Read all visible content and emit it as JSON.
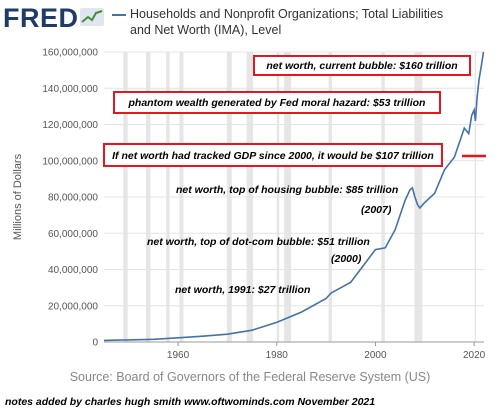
{
  "header": {
    "logo_text": "FRED",
    "logo_icon": "fred-trend-line-icon",
    "series_title": "Households and Nonprofit Organizations; Total Liabilities and Net Worth (IMA), Level"
  },
  "colors": {
    "line": "#4572a7",
    "recession_band": "#e6e6e6",
    "annotation_border": "#e8141e",
    "logo": "#1f3b66"
  },
  "chart_data": {
    "type": "line",
    "ylabel": "Millions of Dollars",
    "xlim": [
      1945,
      2022
    ],
    "ylim": [
      0,
      160000000
    ],
    "x_ticks": [
      1960,
      1980,
      2000,
      2020
    ],
    "y_ticks": [
      {
        "value": 0,
        "label": "0"
      },
      {
        "value": 20000000,
        "label": "20,000,000"
      },
      {
        "value": 40000000,
        "label": "40,000,000"
      },
      {
        "value": 60000000,
        "label": "60,000,000"
      },
      {
        "value": 80000000,
        "label": "80,000,000"
      },
      {
        "value": 100000000,
        "label": "100,000,000"
      },
      {
        "value": 120000000,
        "label": "120,000,000"
      },
      {
        "value": 140000000,
        "label": "140,000,000"
      },
      {
        "value": 160000000,
        "label": "160,000,000"
      }
    ],
    "grid": true,
    "recessions": [
      [
        1948.9,
        1949.8
      ],
      [
        1953.5,
        1954.4
      ],
      [
        1957.6,
        1958.3
      ],
      [
        1960.3,
        1961.1
      ],
      [
        1969.9,
        1970.9
      ],
      [
        1973.9,
        1975.2
      ],
      [
        1980.0,
        1980.5
      ],
      [
        1981.5,
        1982.9
      ],
      [
        1990.5,
        1991.2
      ],
      [
        2001.2,
        2001.9
      ],
      [
        2007.9,
        2009.5
      ],
      [
        2020.1,
        2020.4
      ]
    ],
    "series": [
      {
        "x": [
          1945.0,
          1946.0,
          1947.0,
          1948.0,
          1949.0,
          1950.0,
          1951.0,
          1952.0,
          1955,
          1960,
          1965,
          1970,
          1975,
          1980,
          1985,
          1990,
          1991,
          1995,
          2000,
          2002,
          2004,
          2006,
          2007,
          2007.5,
          2008,
          2008.5,
          2009,
          2010,
          2012,
          2014,
          2016,
          2018,
          2018.9,
          2019.5,
          2020.0,
          2020.25,
          2020.6,
          2021.0,
          2021.5,
          2021.9
        ],
        "y": [
          900000,
          950000,
          1000000,
          1050000,
          1100000,
          1150000,
          1200000,
          1250000,
          1500000,
          2300000,
          3200000,
          4300000,
          6500000,
          10800000,
          16500000,
          24000000,
          27000000,
          33000000,
          51000000,
          52000000,
          62000000,
          78000000,
          84000000,
          85000000,
          80000000,
          76000000,
          74000000,
          77000000,
          82000000,
          95000000,
          102000000,
          118000000,
          115000000,
          125000000,
          128000000,
          122000000,
          135000000,
          145000000,
          153000000,
          160000000
        ]
      }
    ],
    "annotations_boxed": [
      {
        "text": "net worth, current bubble: $160 trillion"
      },
      {
        "text": "phantom wealth generated by Fed moral hazard: $53 trillion"
      },
      {
        "text": "If net worth had tracked GDP since 2000, it would be $107 trillion"
      }
    ],
    "annotations_plain": [
      {
        "text": "net worth, top of housing bubble: $85 trillion"
      },
      {
        "text": "(2007)"
      },
      {
        "text": "net worth, top of dot-com bubble: $51 trillion"
      },
      {
        "text": "(2000)"
      },
      {
        "text": "net worth, 1991: $27 trillion"
      }
    ]
  },
  "footer": {
    "source": "Source: Board of Governors of the Federal Reserve System (US)",
    "credit": "notes added by charles hugh smith   www.oftwominds.com   November 2021"
  }
}
